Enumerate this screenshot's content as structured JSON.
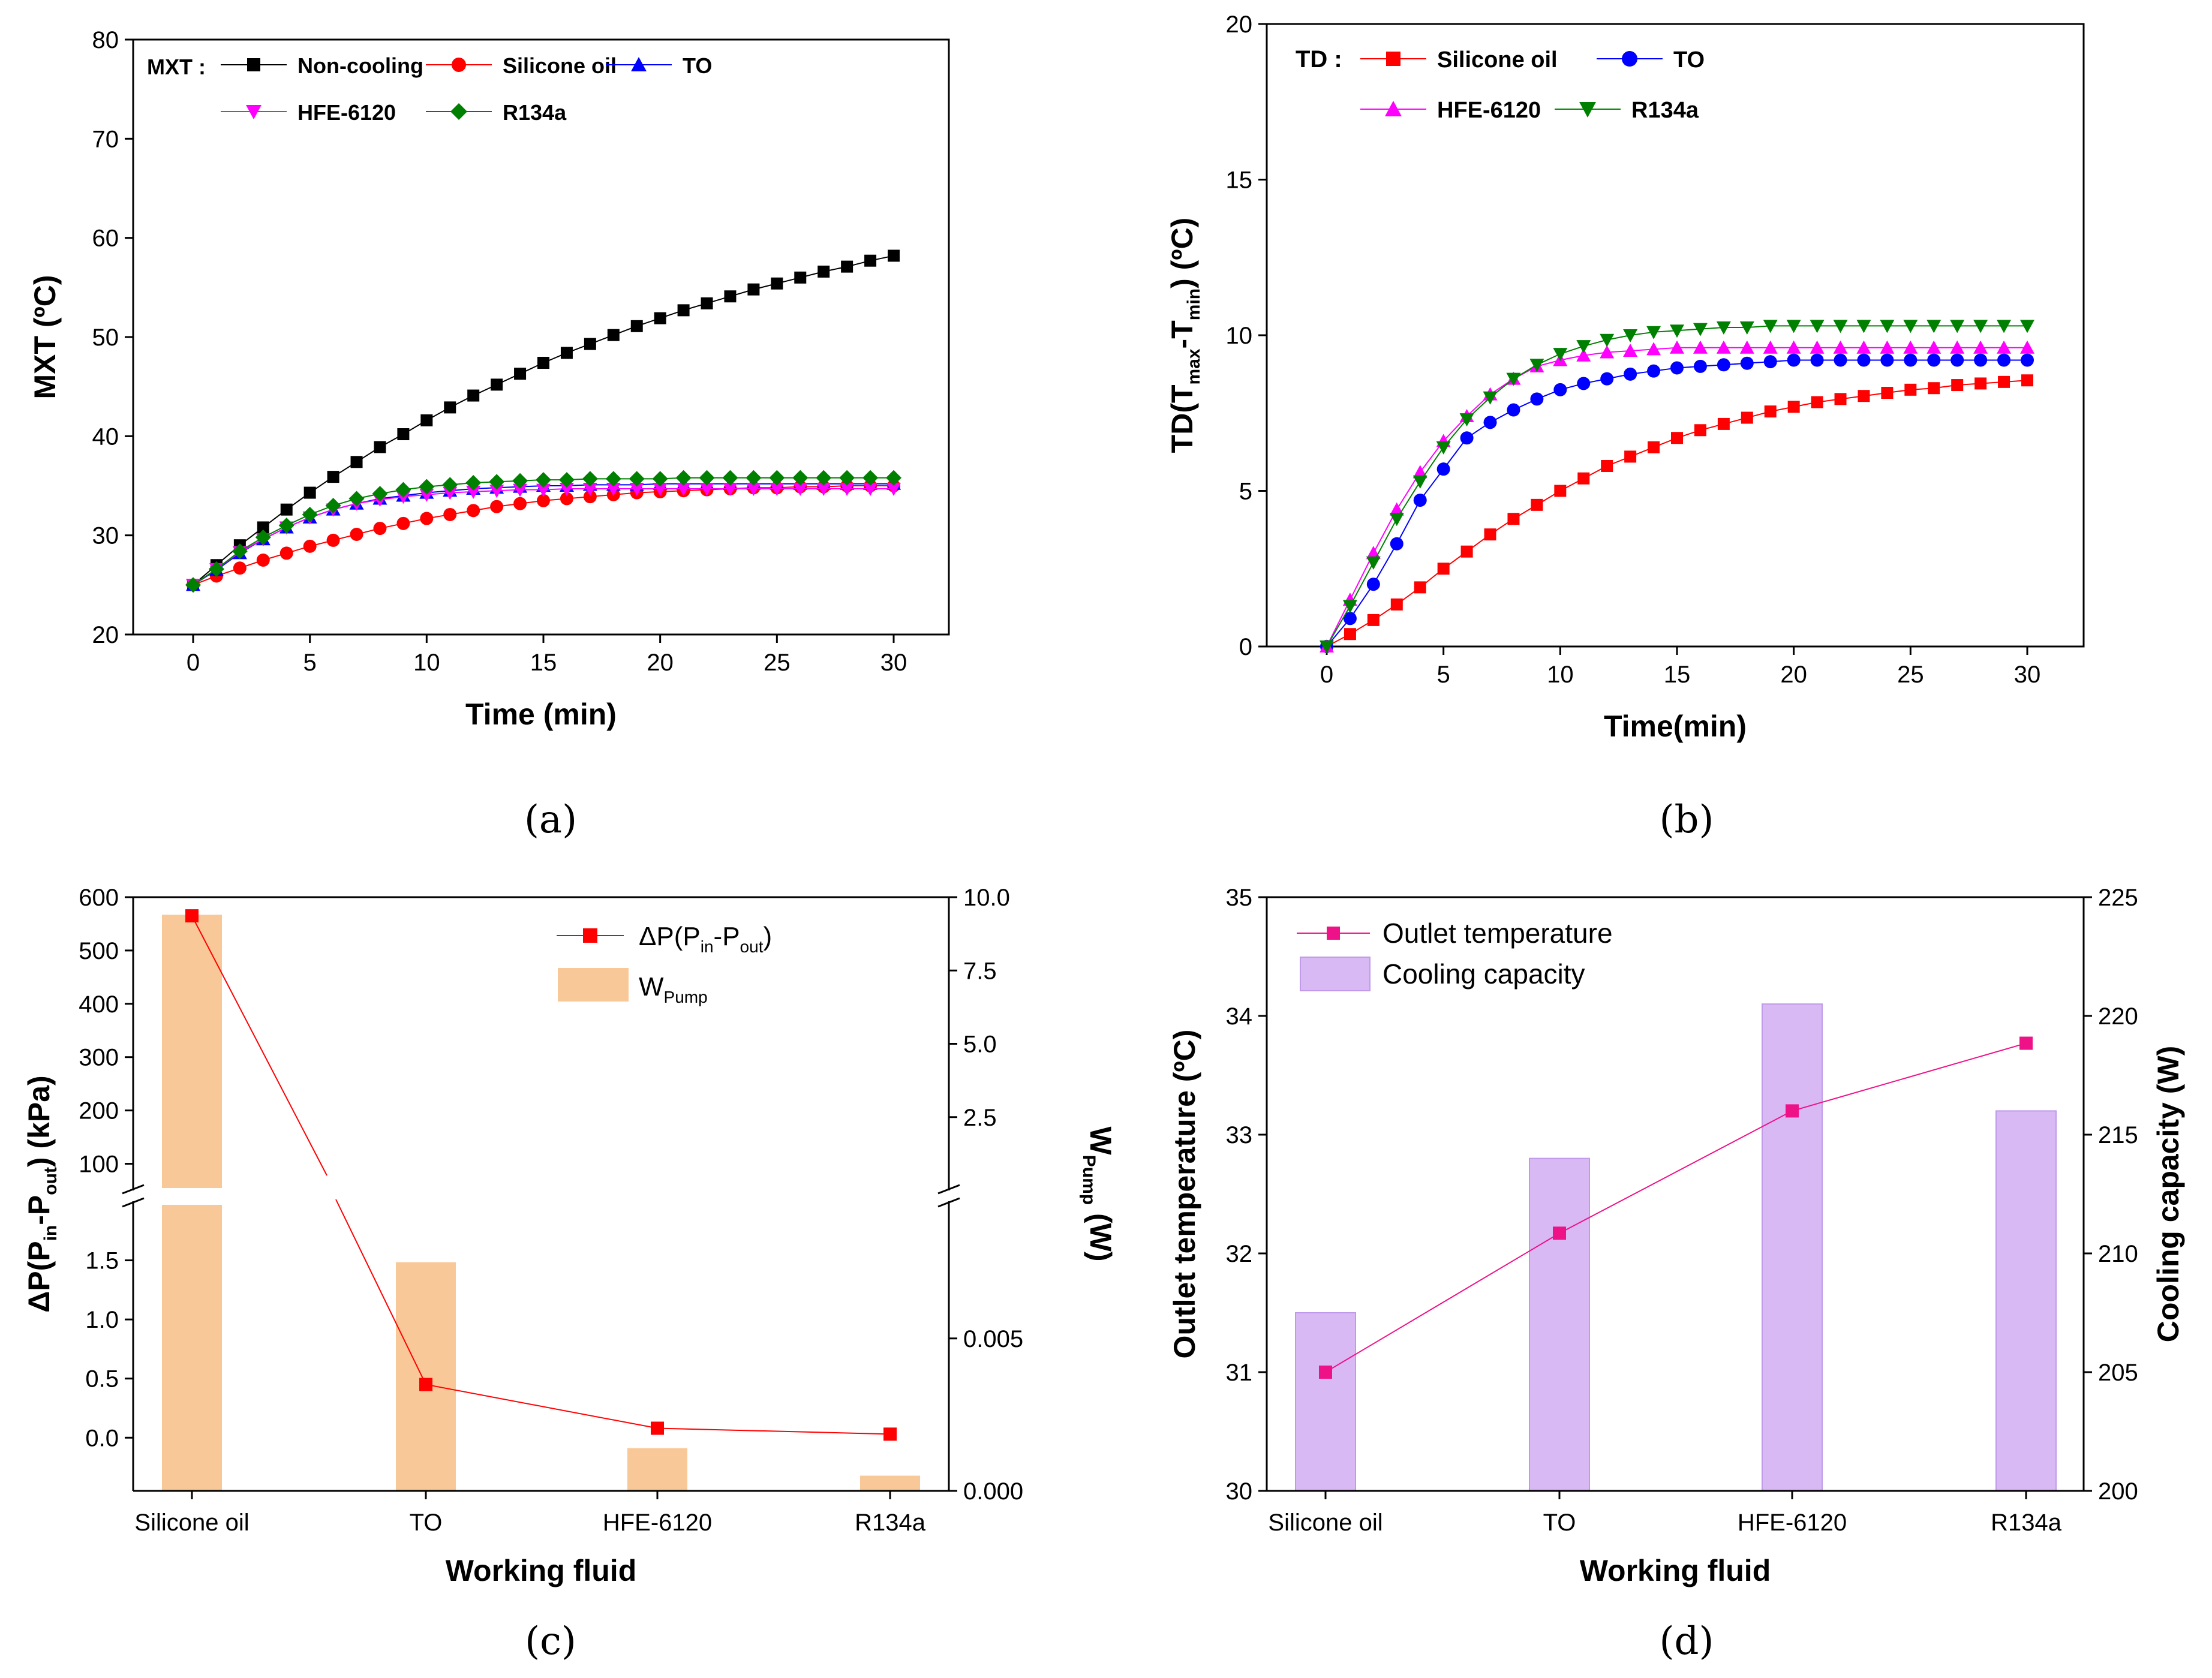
{
  "figure_labels": {
    "a": "(a)",
    "b": "(b)",
    "c": "(c)",
    "d": "(d)"
  },
  "colors": {
    "non_cooling": "#000000",
    "silicone_oil": "#ff0000",
    "to": "#0000ff",
    "hfe6120": "#ff00ff",
    "r134a": "#008000",
    "bar_c": "#f9c898",
    "bar_d": "#d9b9f4",
    "bar_d_edge": "#c09ae8",
    "line_c": "#ff0000",
    "line_d": "#ee1188"
  },
  "chart_data": [
    {
      "id": "a",
      "type": "line",
      "xlabel": "Time (min)",
      "ylabel": "MXT (ºC)",
      "xlim": [
        0,
        30
      ],
      "ylim": [
        20,
        80
      ],
      "xticks": [
        "0",
        "5",
        "10",
        "15",
        "20",
        "25",
        "30"
      ],
      "yticks": [
        "20",
        "30",
        "40",
        "50",
        "60",
        "70",
        "80"
      ],
      "legend_prefix": "MXT :",
      "x": [
        0,
        1,
        2,
        3,
        4,
        5,
        6,
        7,
        8,
        9,
        10,
        11,
        12,
        13,
        14,
        15,
        16,
        17,
        18,
        19,
        20,
        21,
        22,
        23,
        24,
        25,
        26,
        27,
        28,
        29,
        30
      ],
      "series": [
        {
          "name": "Non-cooling",
          "marker": "square",
          "color_key": "non_cooling",
          "values": [
            25,
            27,
            29,
            30.8,
            32.6,
            34.3,
            35.9,
            37.4,
            38.9,
            40.2,
            41.6,
            42.9,
            44.1,
            45.2,
            46.3,
            47.4,
            48.4,
            49.3,
            50.2,
            51.1,
            51.9,
            52.7,
            53.4,
            54.1,
            54.8,
            55.4,
            56,
            56.6,
            57.1,
            57.7,
            58.2
          ]
        },
        {
          "name": "Silicone oil",
          "marker": "circle",
          "color_key": "silicone_oil",
          "values": [
            25,
            25.9,
            26.7,
            27.5,
            28.2,
            28.9,
            29.5,
            30.1,
            30.7,
            31.2,
            31.7,
            32.1,
            32.5,
            32.9,
            33.2,
            33.5,
            33.7,
            33.9,
            34.1,
            34.3,
            34.4,
            34.5,
            34.6,
            34.7,
            34.8,
            34.8,
            34.9,
            34.9,
            35,
            35,
            35
          ]
        },
        {
          "name": "TO",
          "marker": "triangle-up",
          "color_key": "to",
          "values": [
            25,
            26.5,
            28.2,
            29.6,
            30.8,
            31.8,
            32.6,
            33.2,
            33.7,
            34,
            34.3,
            34.5,
            34.7,
            34.8,
            34.9,
            35,
            35,
            35.1,
            35.1,
            35.1,
            35.2,
            35.2,
            35.2,
            35.2,
            35.2,
            35.2,
            35.2,
            35.2,
            35.2,
            35.2,
            35.2
          ]
        },
        {
          "name": "HFE-6120",
          "marker": "triangle-down",
          "color_key": "hfe6120",
          "values": [
            25,
            26.6,
            28.3,
            29.6,
            30.8,
            31.8,
            32.6,
            33.2,
            33.6,
            33.9,
            34.1,
            34.3,
            34.4,
            34.5,
            34.6,
            34.6,
            34.7,
            34.7,
            34.7,
            34.7,
            34.7,
            34.7,
            34.7,
            34.7,
            34.7,
            34.7,
            34.7,
            34.7,
            34.7,
            34.7,
            34.7
          ]
        },
        {
          "name": "R134a",
          "marker": "diamond",
          "color_key": "r134a",
          "values": [
            25,
            26.6,
            28.4,
            29.8,
            31,
            32.1,
            33,
            33.7,
            34.2,
            34.6,
            34.9,
            35.1,
            35.3,
            35.4,
            35.5,
            35.6,
            35.6,
            35.7,
            35.7,
            35.7,
            35.7,
            35.8,
            35.8,
            35.8,
            35.8,
            35.8,
            35.8,
            35.8,
            35.8,
            35.8,
            35.8
          ]
        }
      ]
    },
    {
      "id": "b",
      "type": "line",
      "xlabel": "Time(min)",
      "ylabel_main": "TD(T",
      "ylabel_sub1": "max",
      "ylabel_mid": "-T",
      "ylabel_sub2": "min",
      "ylabel_end": ") (ºC)",
      "xlim": [
        0,
        30
      ],
      "ylim": [
        0,
        20
      ],
      "xticks": [
        "0",
        "5",
        "10",
        "15",
        "20",
        "25",
        "30"
      ],
      "yticks": [
        "0",
        "5",
        "10",
        "15",
        "20"
      ],
      "legend_prefix": "TD :",
      "x": [
        0,
        1,
        2,
        3,
        4,
        5,
        6,
        7,
        8,
        9,
        10,
        11,
        12,
        13,
        14,
        15,
        16,
        17,
        18,
        19,
        20,
        21,
        22,
        23,
        24,
        25,
        26,
        27,
        28,
        29,
        30
      ],
      "series": [
        {
          "name": "Silicone oil",
          "marker": "square",
          "color_key": "silicone_oil",
          "values": [
            0,
            0.4,
            0.85,
            1.35,
            1.9,
            2.5,
            3.05,
            3.6,
            4.1,
            4.55,
            5,
            5.4,
            5.8,
            6.1,
            6.4,
            6.7,
            6.95,
            7.15,
            7.35,
            7.55,
            7.7,
            7.85,
            7.95,
            8.05,
            8.15,
            8.25,
            8.3,
            8.4,
            8.45,
            8.5,
            8.55
          ]
        },
        {
          "name": "TO",
          "marker": "circle",
          "color_key": "to",
          "values": [
            0,
            0.9,
            2,
            3.3,
            4.7,
            5.7,
            6.7,
            7.2,
            7.6,
            7.95,
            8.25,
            8.45,
            8.6,
            8.75,
            8.85,
            8.95,
            9,
            9.05,
            9.1,
            9.15,
            9.2,
            9.2,
            9.2,
            9.2,
            9.2,
            9.2,
            9.2,
            9.2,
            9.2,
            9.2,
            9.2
          ]
        },
        {
          "name": "HFE-6120",
          "marker": "triangle-up",
          "color_key": "hfe6120",
          "values": [
            0,
            1.5,
            3,
            4.4,
            5.6,
            6.6,
            7.4,
            8.1,
            8.6,
            9,
            9.2,
            9.35,
            9.45,
            9.5,
            9.55,
            9.6,
            9.6,
            9.6,
            9.6,
            9.6,
            9.6,
            9.6,
            9.6,
            9.6,
            9.6,
            9.6,
            9.6,
            9.6,
            9.6,
            9.6,
            9.6
          ]
        },
        {
          "name": "R134a",
          "marker": "triangle-down",
          "color_key": "r134a",
          "values": [
            0,
            1.3,
            2.7,
            4.1,
            5.3,
            6.4,
            7.3,
            8,
            8.6,
            9.05,
            9.4,
            9.65,
            9.85,
            10,
            10.1,
            10.15,
            10.2,
            10.25,
            10.25,
            10.3,
            10.3,
            10.3,
            10.3,
            10.3,
            10.3,
            10.3,
            10.3,
            10.3,
            10.3,
            10.3,
            10.3
          ]
        }
      ]
    },
    {
      "id": "c",
      "type": "bar+line",
      "categories": [
        "Silicone oil",
        "TO",
        "HFE-6120",
        "R134a"
      ],
      "xlabel": "Working fluid",
      "ylabel_left_main": "ΔP(P",
      "ylabel_left_sub1": "in",
      "ylabel_left_mid": "-P",
      "ylabel_left_sub2": "out",
      "ylabel_left_end": ") (kPa)",
      "ylabel_right_main": "W",
      "ylabel_right_sub": "Pump",
      "ylabel_right_end": " (W)",
      "left_upper": {
        "ylim": [
          50,
          600
        ],
        "ticks": [
          "100",
          "200",
          "300",
          "400",
          "500",
          "600"
        ]
      },
      "left_lower": {
        "ylim": [
          -0.45,
          2.0
        ],
        "ticks": [
          "0.0",
          "0.5",
          "1.0",
          "1.5"
        ]
      },
      "right_upper": {
        "ylim": [
          0,
          10
        ],
        "ticks": [
          "2.5",
          "5.0",
          "7.5",
          "10.0"
        ]
      },
      "right_lower": {
        "ylim": [
          0,
          0.0095
        ],
        "ticks": [
          "0.000",
          "0.005"
        ]
      },
      "series": [
        {
          "name": "ΔP(Pin-Pout)",
          "legend_main": "ΔP(P",
          "legend_sub1": "in",
          "legend_mid": "-P",
          "legend_sub2": "out",
          "legend_end": ")",
          "type": "line",
          "color_key": "line_c",
          "values": [
            565,
            0.45,
            0.08,
            0.03
          ]
        },
        {
          "name": "WPump",
          "legend_main": "W",
          "legend_sub": "Pump",
          "type": "bar",
          "color_key": "bar_c",
          "values": [
            9.4,
            0.0075,
            0.0014,
            0.0005
          ]
        }
      ]
    },
    {
      "id": "d",
      "type": "bar+line",
      "categories": [
        "Silicone oil",
        "TO",
        "HFE-6120",
        "R134a"
      ],
      "xlabel": "Working fluid",
      "ylabel_left": "Outlet temperature (ºC)",
      "ylabel_right": "Cooling capacity (W)",
      "ylim_left": [
        30,
        35
      ],
      "ylim_right": [
        200,
        225
      ],
      "left_ticks": [
        "30",
        "31",
        "32",
        "33",
        "34",
        "35"
      ],
      "right_ticks": [
        "200",
        "205",
        "210",
        "215",
        "220",
        "225"
      ],
      "series": [
        {
          "name": "Outlet temperature",
          "type": "line",
          "color_key": "line_d",
          "values": [
            31.0,
            32.17,
            33.2,
            33.77
          ]
        },
        {
          "name": "Cooling capacity",
          "type": "bar",
          "color_key": "bar_d",
          "values": [
            207.5,
            214,
            220.5,
            216
          ]
        }
      ]
    }
  ]
}
